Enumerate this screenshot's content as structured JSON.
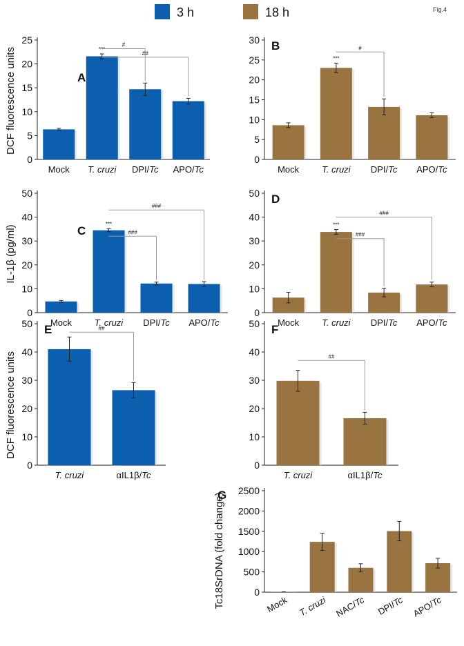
{
  "figure_label": "Fig.4",
  "legend": [
    {
      "label": "3 h",
      "color": "#0b5fae"
    },
    {
      "label": "18 h",
      "color": "#9a7440"
    }
  ],
  "axis_labels": {
    "dcf": "DCF fluorescence units",
    "il1b": "IL-1β (pg/ml)",
    "tc18s": "Tc18SrDNA (fold change)"
  },
  "chart_data": [
    {
      "id": "A",
      "type": "bar",
      "panel_label": "A",
      "series_color": "#0b5fae",
      "categories": [
        {
          "pre": "Mock",
          "it": "",
          "post": ""
        },
        {
          "pre": "",
          "it": "T. cruzi",
          "post": ""
        },
        {
          "pre": "DPI/",
          "it": "Tc",
          "post": ""
        },
        {
          "pre": "APO/",
          "it": "Tc",
          "post": ""
        }
      ],
      "values": [
        6.3,
        21.6,
        14.7,
        12.2
      ],
      "errors": [
        0.2,
        0.5,
        1.3,
        0.6
      ],
      "ylim": [
        0,
        25
      ],
      "yticks": [
        0,
        5,
        10,
        15,
        20,
        25
      ],
      "stars": [
        {
          "i": 1,
          "text": "***"
        }
      ],
      "brackets": [
        {
          "from": 1,
          "to": 2,
          "text": "#",
          "y": 23.2
        },
        {
          "from": 1,
          "to": 3,
          "text": "##",
          "y": 21.4
        }
      ]
    },
    {
      "id": "B",
      "type": "bar",
      "panel_label": "B",
      "series_color": "#9a7440",
      "categories": [
        {
          "pre": "Mock",
          "it": "",
          "post": ""
        },
        {
          "pre": "",
          "it": "T. cruzi",
          "post": ""
        },
        {
          "pre": "DPI/",
          "it": "Tc",
          "post": ""
        },
        {
          "pre": "APO/",
          "it": "Tc",
          "post": ""
        }
      ],
      "values": [
        8.6,
        23.0,
        13.2,
        11.1
      ],
      "errors": [
        0.6,
        1.2,
        2.0,
        0.6
      ],
      "ylim": [
        0,
        30
      ],
      "yticks": [
        0,
        5,
        10,
        15,
        20,
        25,
        30
      ],
      "stars": [
        {
          "i": 1,
          "text": "***"
        }
      ],
      "brackets": [
        {
          "from": 1,
          "to": 2,
          "text": "#",
          "y": 27.0
        }
      ]
    },
    {
      "id": "C",
      "type": "bar",
      "panel_label": "C",
      "series_color": "#0b5fae",
      "categories": [
        {
          "pre": "Mock",
          "it": "",
          "post": ""
        },
        {
          "pre": "",
          "it": "T. cruzi",
          "post": ""
        },
        {
          "pre": "DPI/",
          "it": "Tc",
          "post": ""
        },
        {
          "pre": "APO/",
          "it": "Tc",
          "post": ""
        }
      ],
      "values": [
        4.7,
        34.5,
        12.2,
        12.0
      ],
      "errors": [
        0.4,
        0.6,
        0.6,
        1.0
      ],
      "ylim": [
        0,
        50
      ],
      "yticks": [
        0,
        10,
        20,
        30,
        40,
        50
      ],
      "stars": [
        {
          "i": 1,
          "text": "***"
        }
      ],
      "brackets": [
        {
          "from": 1,
          "to": 2,
          "text": "###",
          "y": 32.0
        },
        {
          "from": 1,
          "to": 3,
          "text": "###",
          "y": 43.0
        }
      ]
    },
    {
      "id": "D",
      "type": "bar",
      "panel_label": "D",
      "series_color": "#9a7440",
      "categories": [
        {
          "pre": "Mock",
          "it": "",
          "post": ""
        },
        {
          "pre": "",
          "it": "T. cruzi",
          "post": ""
        },
        {
          "pre": "DPI/",
          "it": "Tc",
          "post": ""
        },
        {
          "pre": "APO/",
          "it": "Tc",
          "post": ""
        }
      ],
      "values": [
        6.3,
        33.8,
        8.4,
        11.8
      ],
      "errors": [
        2.2,
        1.0,
        1.8,
        1.0
      ],
      "ylim": [
        0,
        50
      ],
      "yticks": [
        0,
        10,
        20,
        30,
        40,
        50
      ],
      "stars": [
        {
          "i": 1,
          "text": "***"
        }
      ],
      "brackets": [
        {
          "from": 1,
          "to": 2,
          "text": "###",
          "y": 31.0
        },
        {
          "from": 1,
          "to": 3,
          "text": "###",
          "y": 40.0
        }
      ]
    },
    {
      "id": "E",
      "type": "bar",
      "panel_label": "E",
      "series_color": "#0b5fae",
      "categories": [
        {
          "pre": "",
          "it": "T. cruzi",
          "post": ""
        },
        {
          "pre": "αIL1β/",
          "it": "Tc",
          "post": ""
        }
      ],
      "values": [
        41.0,
        26.5
      ],
      "errors": [
        4.3,
        2.7
      ],
      "ylim": [
        0,
        50
      ],
      "yticks": [
        0,
        10,
        20,
        30,
        40,
        50
      ],
      "stars": [],
      "brackets": [
        {
          "from": 0,
          "to": 1,
          "text": "##",
          "y": 47.0
        }
      ]
    },
    {
      "id": "F",
      "type": "bar",
      "panel_label": "F",
      "series_color": "#9a7440",
      "categories": [
        {
          "pre": "",
          "it": "T. cruzi",
          "post": ""
        },
        {
          "pre": "αIL1β/",
          "it": "Tc",
          "post": ""
        }
      ],
      "values": [
        29.8,
        16.6
      ],
      "errors": [
        3.7,
        2.1
      ],
      "ylim": [
        0,
        50
      ],
      "yticks": [
        0,
        10,
        20,
        30,
        40,
        50
      ],
      "stars": [],
      "brackets": [
        {
          "from": 0,
          "to": 1,
          "text": "##",
          "y": 37.0
        }
      ]
    },
    {
      "id": "G",
      "type": "bar",
      "panel_label": "G",
      "series_color": "#9a7440",
      "categories": [
        {
          "pre": "Mock",
          "it": "",
          "post": ""
        },
        {
          "pre": "",
          "it": "T. cruzi",
          "post": ""
        },
        {
          "pre": "NAC/",
          "it": "Tc",
          "post": ""
        },
        {
          "pre": "DPI/",
          "it": "Tc",
          "post": ""
        },
        {
          "pre": "APO/",
          "it": "Tc",
          "post": ""
        }
      ],
      "values": [
        5,
        1240,
        600,
        1505,
        715
      ],
      "errors": [
        5,
        210,
        100,
        240,
        120
      ],
      "ylim": [
        0,
        2500
      ],
      "yticks": [
        0,
        500,
        1000,
        1500,
        2000,
        2500
      ],
      "stars": [],
      "brackets": []
    }
  ]
}
